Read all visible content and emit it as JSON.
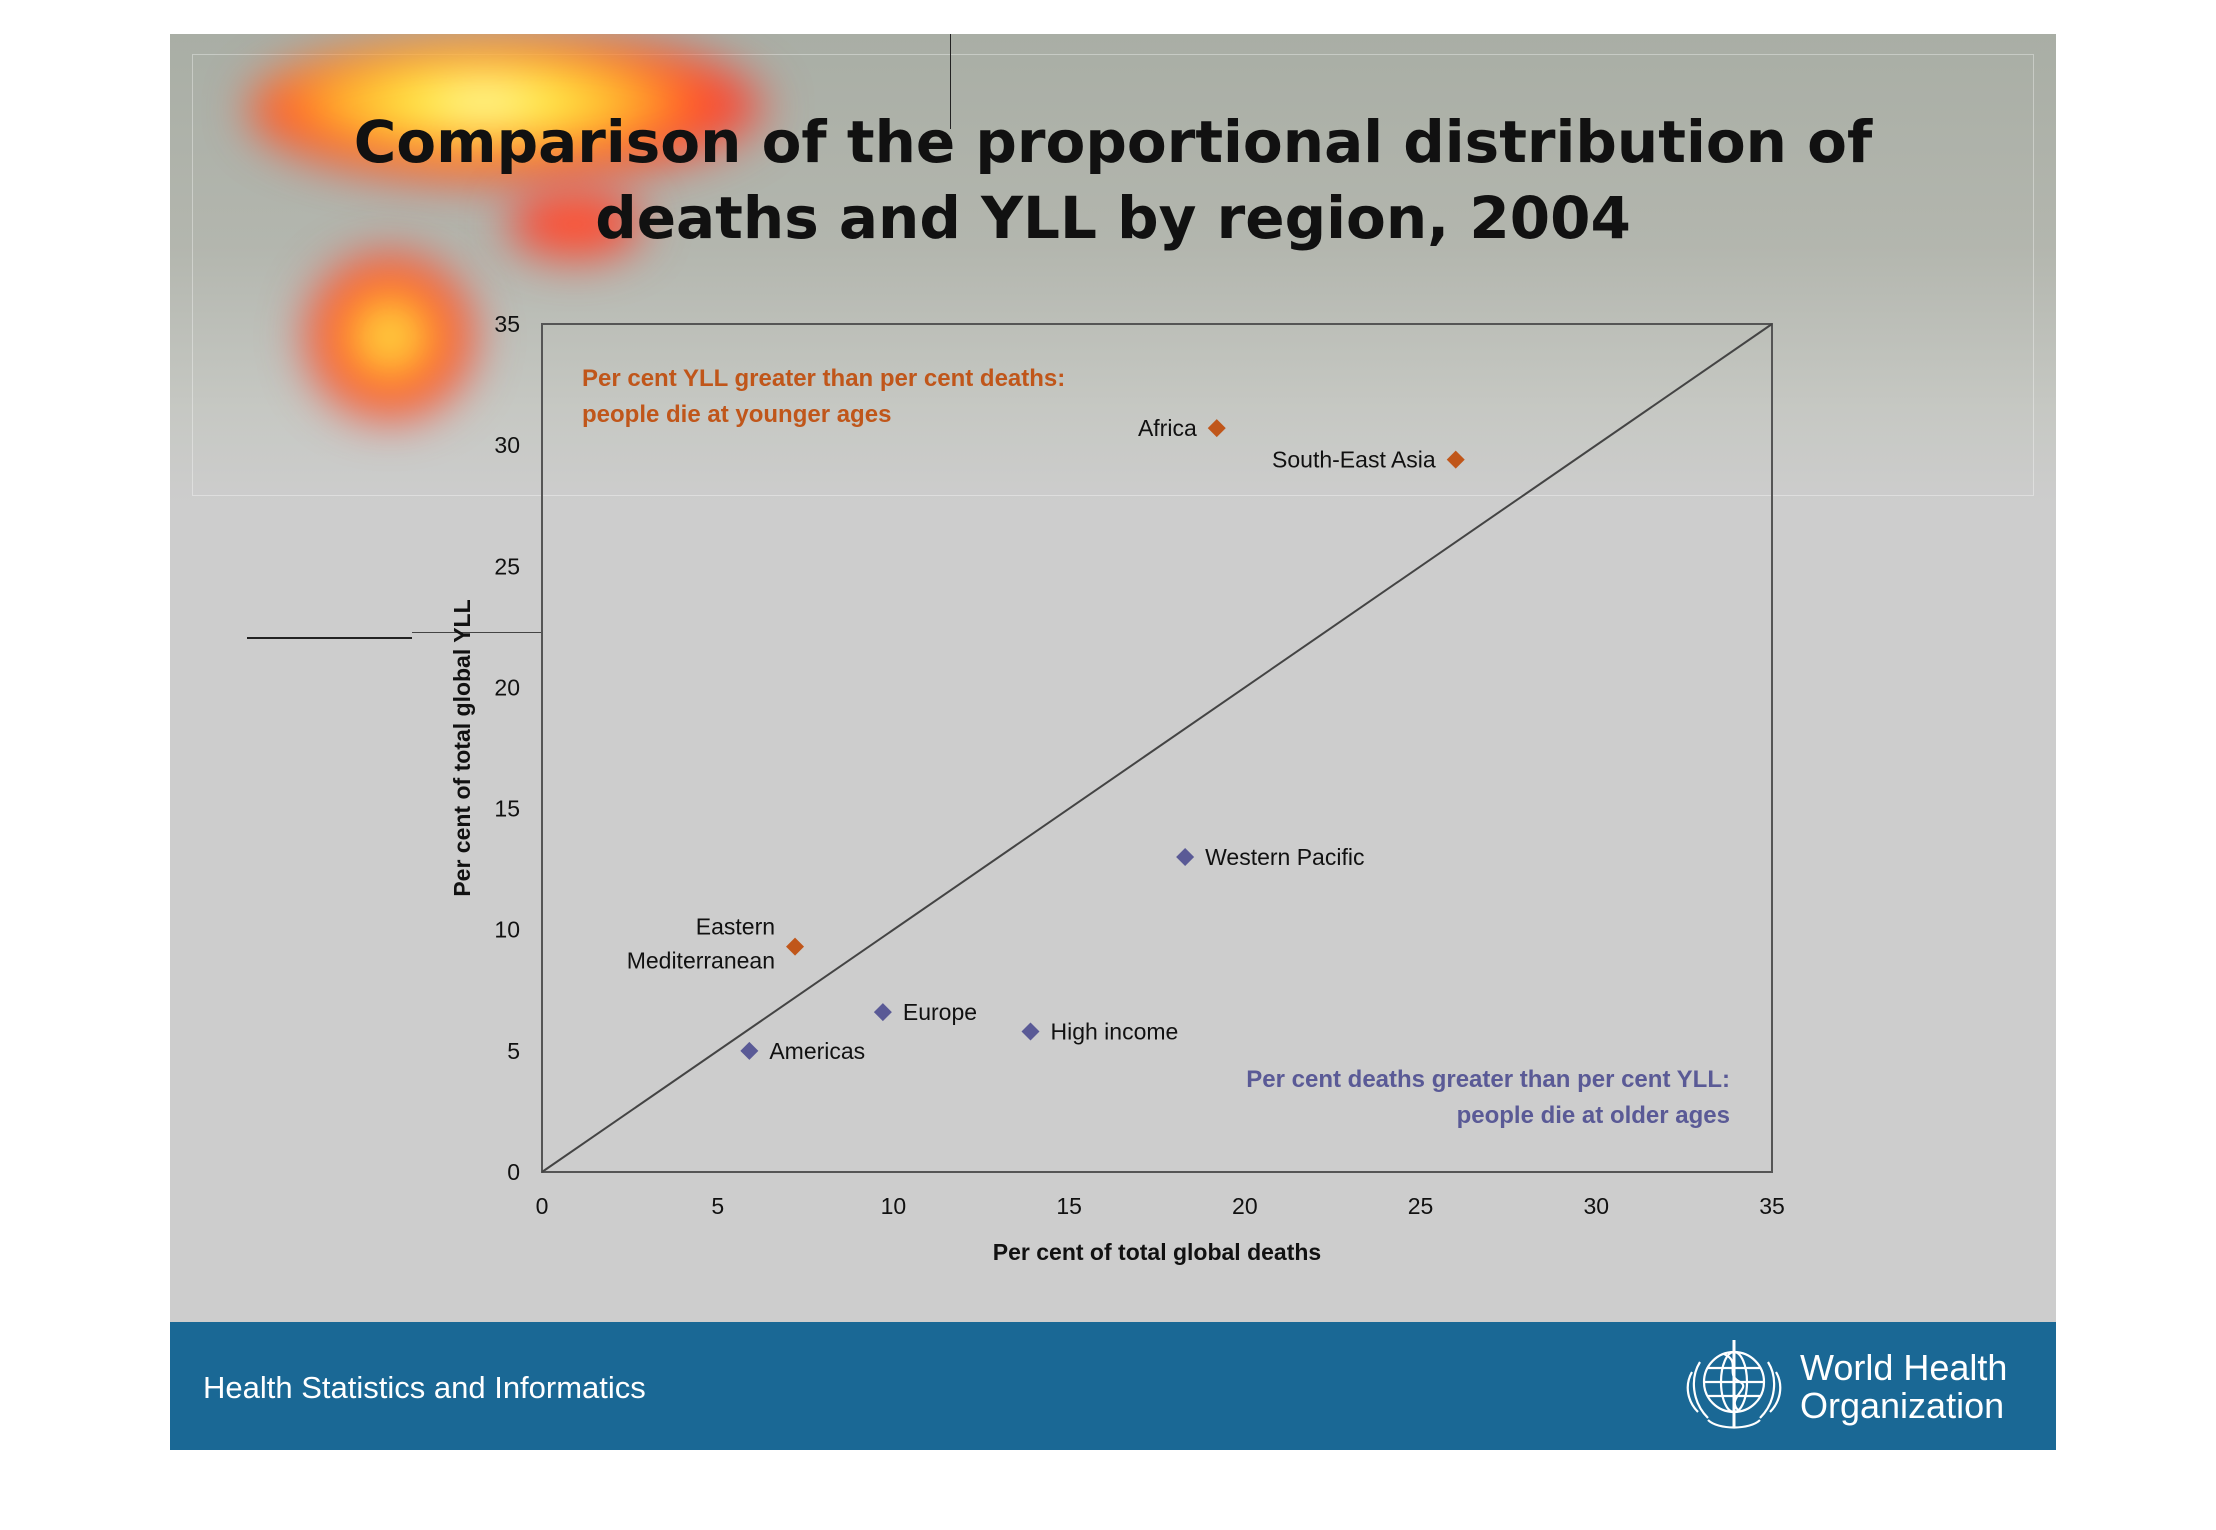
{
  "slide": {
    "title_line1": "Comparison of the proportional distribution of",
    "title_line2": "deaths and YLL by region, 2004"
  },
  "footer": {
    "text": "Health Statistics and Informatics",
    "org_line1": "World Health",
    "org_line2": "Organization",
    "color": "#1a6895"
  },
  "chart_data": {
    "type": "scatter",
    "xlabel": "Per cent of total global deaths",
    "ylabel": "Per cent of total global YLL",
    "xlim": [
      0,
      35
    ],
    "ylim": [
      0,
      35
    ],
    "x_ticks": [
      0,
      5,
      10,
      15,
      20,
      25,
      30,
      35
    ],
    "y_ticks": [
      0,
      5,
      10,
      15,
      20,
      25,
      30,
      35
    ],
    "reference_line": {
      "from": [
        0,
        0
      ],
      "to": [
        35,
        35
      ]
    },
    "colors": {
      "above": "#c0561a",
      "below": "#5a5a96"
    },
    "points": [
      {
        "label": "Africa",
        "x": 19.2,
        "y": 30.7,
        "group": "above"
      },
      {
        "label": "South-East Asia",
        "x": 26.0,
        "y": 29.4,
        "group": "above"
      },
      {
        "label": "Eastern Mediterranean",
        "label_lines": [
          "Eastern",
          "Mediterranean"
        ],
        "x": 7.2,
        "y": 9.3,
        "group": "above"
      },
      {
        "label": "Western Pacific",
        "x": 18.3,
        "y": 13.0,
        "group": "below"
      },
      {
        "label": "Europe",
        "x": 9.7,
        "y": 6.6,
        "group": "below"
      },
      {
        "label": "High income",
        "x": 13.9,
        "y": 5.8,
        "group": "below"
      },
      {
        "label": "Americas",
        "x": 5.9,
        "y": 5.0,
        "group": "below"
      }
    ],
    "annotations": [
      {
        "lines": [
          "Per cent YLL greater than per cent deaths:",
          "people die at younger ages"
        ],
        "color": "#c0561a",
        "align": "left",
        "corner": "top-left"
      },
      {
        "lines": [
          "Per cent deaths greater than per cent YLL:",
          "people die at older ages"
        ],
        "color": "#5a5a96",
        "align": "right",
        "corner": "bottom-right"
      }
    ]
  }
}
